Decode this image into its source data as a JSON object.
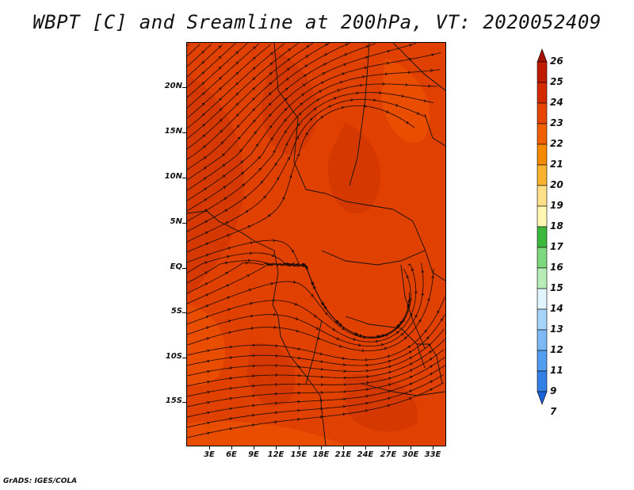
{
  "title": "WBPT [C] and Sreamline at 200hPa, VT: 2020052409",
  "footer": "GrADS: IGES/COLA",
  "lat_labels": [
    "20N",
    "15N",
    "10N",
    "5N",
    "EQ",
    "5S",
    "10S",
    "15S"
  ],
  "lon_labels": [
    "3E",
    "6E",
    "9E",
    "12E",
    "15E",
    "18E",
    "21E",
    "24E",
    "27E",
    "30E",
    "33E"
  ],
  "colorbar": {
    "labels": [
      "26",
      "25",
      "24",
      "23",
      "22",
      "21",
      "20",
      "19",
      "18",
      "17",
      "16",
      "15",
      "14",
      "13",
      "12",
      "11",
      "9",
      "7"
    ],
    "colors": [
      "#a50f00",
      "#c01a00",
      "#d42a00",
      "#e64500",
      "#f06000",
      "#f58a00",
      "#f8b22c",
      "#fde087",
      "#fff7b0",
      "#3cb93c",
      "#7dd87d",
      "#b7eeb7",
      "#e1f5ff",
      "#a6d4fb",
      "#7cb9f5",
      "#519ef0",
      "#3380e6",
      "#1c62d6"
    ]
  },
  "map": {
    "background": "#e04000",
    "patch_colors": [
      "#d23500",
      "#ec5200"
    ]
  }
}
